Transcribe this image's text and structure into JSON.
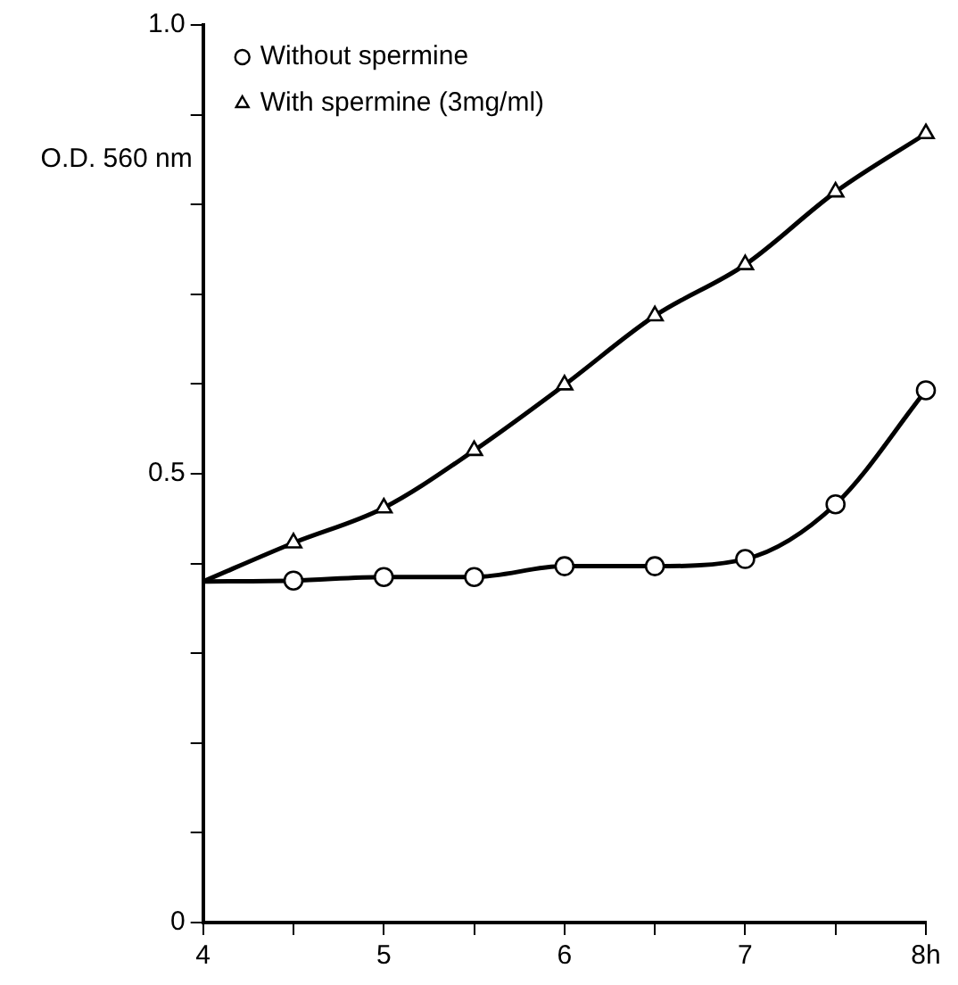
{
  "chart_data": {
    "type": "line",
    "ylabel": "O.D. 560 nm",
    "xlim": [
      4,
      8
    ],
    "xticks": [
      4,
      {
        "value": 4.5,
        "label": null
      },
      5,
      {
        "value": 5.5,
        "label": null
      },
      6,
      {
        "value": 6.5,
        "label": null
      },
      7,
      {
        "value": 7.5,
        "label": null
      },
      {
        "value": 8,
        "label": "8h"
      }
    ],
    "ylim": [
      0,
      1.0
    ],
    "yticks": [
      0,
      {
        "value": 0.1,
        "label": null
      },
      {
        "value": 0.2,
        "label": null
      },
      {
        "value": 0.3,
        "label": null
      },
      {
        "value": 0.4,
        "label": null
      },
      0.5,
      {
        "value": 0.6,
        "label": null
      },
      {
        "value": 0.7,
        "label": null
      },
      {
        "value": 0.8,
        "label": null
      },
      {
        "value": 0.9,
        "label": null
      },
      {
        "value": 1,
        "label": "1.0"
      }
    ],
    "grid": false,
    "legend": "top left",
    "series": [
      {
        "name": "Without spermine",
        "color": "#000000",
        "marker": "circle",
        "x": [
          4,
          4.5,
          5,
          5.5,
          6,
          6.5,
          7,
          7.5,
          8
        ],
        "values": [
          0.38,
          0.381,
          0.385,
          0.385,
          0.397,
          0.397,
          0.405,
          0.466,
          0.593
        ]
      },
      {
        "name": "With spermine (3mg/ml)",
        "color": "#000000",
        "marker": "triangle",
        "x": [
          4,
          4.5,
          5,
          5.5,
          6,
          6.5,
          7,
          7.5,
          8
        ],
        "values": [
          0.38,
          0.423,
          0.462,
          0.526,
          0.599,
          0.676,
          0.733,
          0.814,
          0.879
        ]
      }
    ]
  }
}
